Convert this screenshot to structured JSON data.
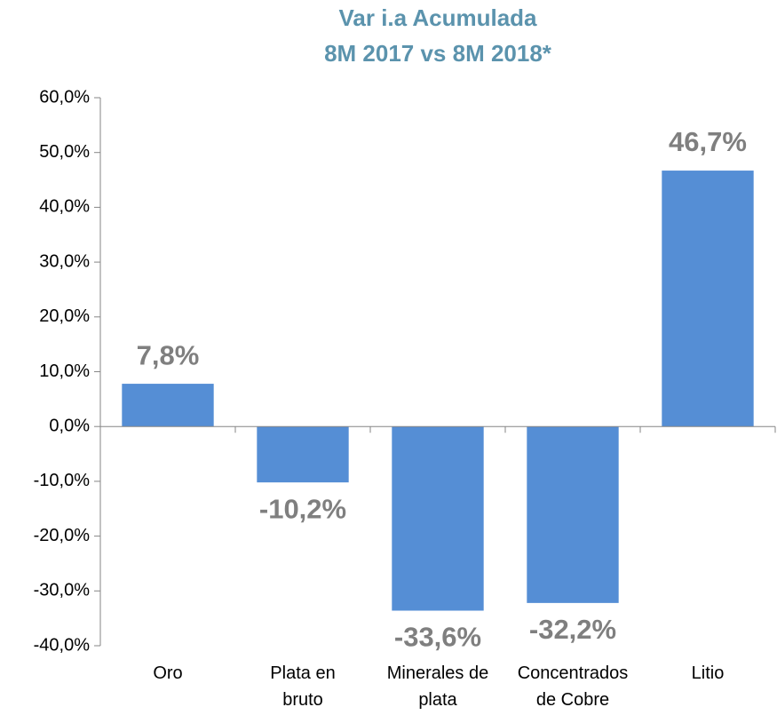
{
  "chart_data": {
    "type": "bar",
    "title": [
      "Var i.a Acumulada",
      "8M 2017 vs 8M 2018*"
    ],
    "categories": [
      "Oro",
      "Plata en\nbruto",
      "Minerales de\nplata",
      "Concentrados\nde Cobre",
      "Litio"
    ],
    "values": [
      7.8,
      -10.2,
      -33.6,
      -32.2,
      46.7
    ],
    "value_labels": [
      "7,8%",
      "-10,2%",
      "-33,6%",
      "-32,2%",
      "46,7%"
    ],
    "color": "#558ed5",
    "ylim": [
      -40,
      60
    ],
    "yticks": [
      {
        "value": -40,
        "label": "-40,0%"
      },
      {
        "value": -30,
        "label": "-30,0%"
      },
      {
        "value": -20,
        "label": "-20,0%"
      },
      {
        "value": -10,
        "label": "-10,0%"
      },
      {
        "value": 0,
        "label": "0,0%"
      },
      {
        "value": 10,
        "label": "10,0%"
      },
      {
        "value": 20,
        "label": "20,0%"
      },
      {
        "value": 30,
        "label": "30,0%"
      },
      {
        "value": 40,
        "label": "40,0%"
      },
      {
        "value": 50,
        "label": "50,0%"
      },
      {
        "value": 60,
        "label": "60,0%"
      }
    ],
    "grid": false
  }
}
